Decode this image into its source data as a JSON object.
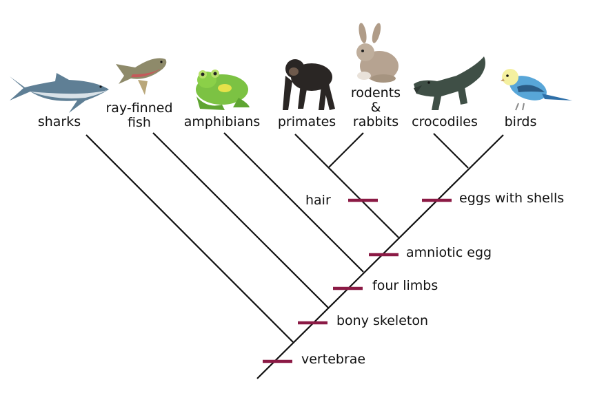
{
  "colors": {
    "branch": "#111111",
    "marker": "#8b1a45",
    "text": "#111111"
  },
  "taxa": [
    {
      "id": "sharks",
      "label": "sharks",
      "icon": "shark-icon"
    },
    {
      "id": "ray-finned-fish",
      "label": "ray-finned\nfish",
      "icon": "fish-icon"
    },
    {
      "id": "amphibians",
      "label": "amphibians",
      "icon": "frog-icon"
    },
    {
      "id": "primates",
      "label": "primates",
      "icon": "chimpanzee-icon"
    },
    {
      "id": "rodents-rabbits",
      "label": "rodents\n&\nrabbits",
      "icon": "rabbit-icon"
    },
    {
      "id": "crocodiles",
      "label": "crocodiles",
      "icon": "crocodile-icon"
    },
    {
      "id": "birds",
      "label": "birds",
      "icon": "bird-icon"
    }
  ],
  "traits": [
    {
      "id": "vertebrae",
      "label": "vertebrae"
    },
    {
      "id": "bony-skeleton",
      "label": "bony skeleton"
    },
    {
      "id": "four-limbs",
      "label": "four limbs"
    },
    {
      "id": "amniotic-egg",
      "label": "amniotic egg"
    },
    {
      "id": "hair",
      "label": "hair"
    },
    {
      "id": "eggs-with-shells",
      "label": "eggs with shells"
    }
  ]
}
